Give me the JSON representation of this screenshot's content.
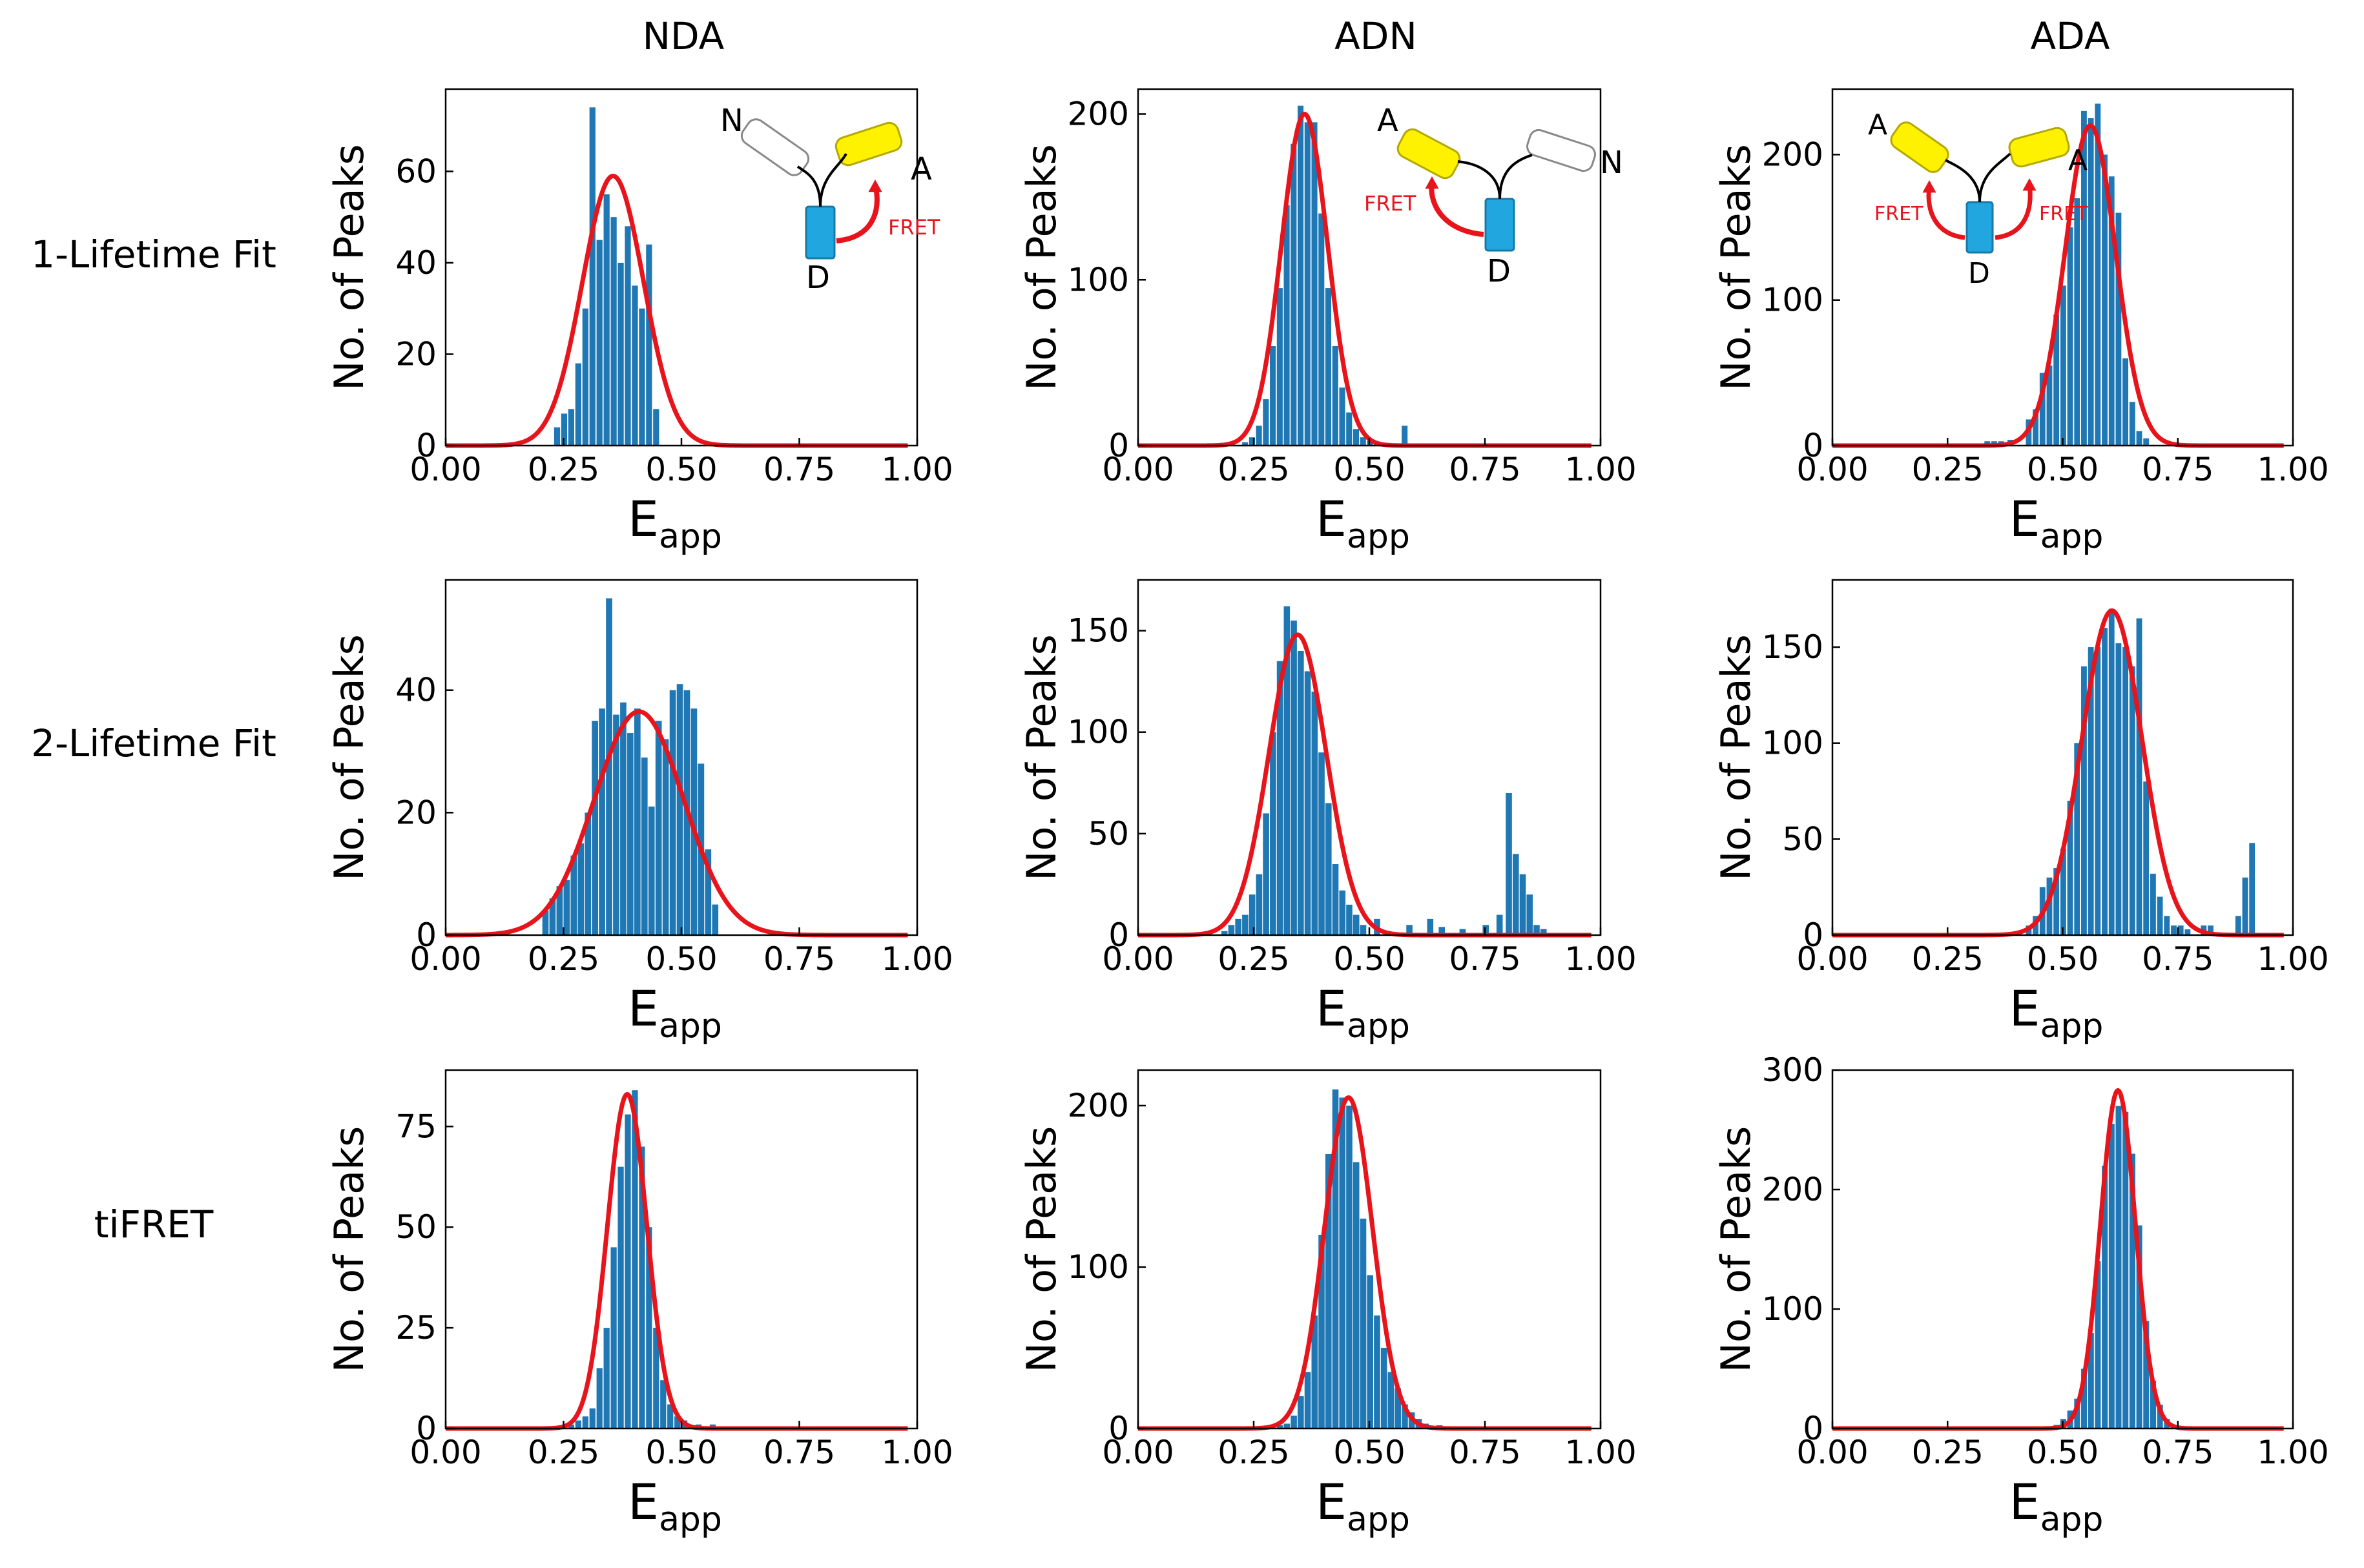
{
  "column_titles": [
    "NDA",
    "ADN",
    "ADA"
  ],
  "row_titles": [
    "1-Lifetime Fit",
    "2-Lifetime Fit",
    "tiFRET"
  ],
  "colors": {
    "bar": "#1f77b4",
    "fit": "#e8141c",
    "donor": "#21a6e0",
    "acceptor": "#fff200",
    "fret_text": "#e8141c",
    "axes": "#000000"
  },
  "chart_data": [
    {
      "id": "r1c1",
      "type": "bar",
      "column": "NDA",
      "row": "1-Lifetime Fit",
      "xlabel": "E",
      "xlabel_sub": "app",
      "ylabel": "No. of Peaks",
      "xlim": [
        0,
        1
      ],
      "ylim": [
        0,
        78
      ],
      "xticks": [
        "0.00",
        "0.25",
        "0.50",
        "0.75",
        "1.00"
      ],
      "xtick_values": [
        0,
        0.25,
        0.5,
        0.75,
        1
      ],
      "yticks": [
        "0",
        "20",
        "40",
        "60"
      ],
      "ytick_values": [
        0,
        20,
        40,
        60
      ],
      "bin_width": 0.0147,
      "bins": [
        [
          0.23,
          4
        ],
        [
          0.245,
          7
        ],
        [
          0.26,
          8
        ],
        [
          0.275,
          18
        ],
        [
          0.29,
          30
        ],
        [
          0.305,
          74
        ],
        [
          0.32,
          45
        ],
        [
          0.335,
          55
        ],
        [
          0.35,
          50
        ],
        [
          0.365,
          40
        ],
        [
          0.38,
          48
        ],
        [
          0.395,
          35
        ],
        [
          0.41,
          30
        ],
        [
          0.425,
          44
        ],
        [
          0.44,
          8
        ]
      ],
      "fit": {
        "amp": 59,
        "mu": 0.355,
        "sigma": 0.065
      },
      "inset": {
        "type": "NDA",
        "labels": {
          "N": "N",
          "D": "D",
          "A": "A",
          "fret": "FRET"
        }
      }
    },
    {
      "id": "r1c2",
      "type": "bar",
      "column": "ADN",
      "row": "1-Lifetime Fit",
      "xlabel": "E",
      "xlabel_sub": "app",
      "ylabel": "No. of Peaks",
      "xlim": [
        0,
        1
      ],
      "ylim": [
        0,
        215
      ],
      "xticks": [
        "0.00",
        "0.25",
        "0.50",
        "0.75",
        "1.00"
      ],
      "xtick_values": [
        0,
        0.25,
        0.5,
        0.75,
        1
      ],
      "yticks": [
        "0",
        "100",
        "200"
      ],
      "ytick_values": [
        0,
        100,
        200
      ],
      "bin_width": 0.0148,
      "bins": [
        [
          0.225,
          2
        ],
        [
          0.24,
          5
        ],
        [
          0.255,
          12
        ],
        [
          0.27,
          28
        ],
        [
          0.285,
          60
        ],
        [
          0.3,
          95
        ],
        [
          0.315,
          145
        ],
        [
          0.33,
          182
        ],
        [
          0.345,
          205
        ],
        [
          0.36,
          195
        ],
        [
          0.375,
          195
        ],
        [
          0.39,
          140
        ],
        [
          0.405,
          95
        ],
        [
          0.42,
          60
        ],
        [
          0.435,
          35
        ],
        [
          0.45,
          20
        ],
        [
          0.465,
          10
        ],
        [
          0.48,
          5
        ],
        [
          0.495,
          3
        ],
        [
          0.51,
          2
        ],
        [
          0.57,
          12
        ]
      ],
      "fit": {
        "amp": 200,
        "mu": 0.36,
        "sigma": 0.05
      },
      "inset": {
        "type": "ADN",
        "labels": {
          "N": "N",
          "D": "D",
          "A": "A",
          "fret": "FRET"
        }
      }
    },
    {
      "id": "r1c3",
      "type": "bar",
      "column": "ADA",
      "row": "1-Lifetime Fit",
      "xlabel": "E",
      "xlabel_sub": "app",
      "ylabel": "No. of Peaks",
      "xlim": [
        0,
        1
      ],
      "ylim": [
        0,
        245
      ],
      "xticks": [
        "0.00",
        "0.25",
        "0.50",
        "0.75",
        "1.00"
      ],
      "xtick_values": [
        0,
        0.25,
        0.5,
        0.75,
        1
      ],
      "yticks": [
        "0",
        "100",
        "200"
      ],
      "ytick_values": [
        0,
        100,
        200
      ],
      "bin_width": 0.0145,
      "bins": [
        [
          0.33,
          3
        ],
        [
          0.345,
          3
        ],
        [
          0.36,
          3
        ],
        [
          0.38,
          4
        ],
        [
          0.42,
          18
        ],
        [
          0.435,
          25
        ],
        [
          0.45,
          50
        ],
        [
          0.465,
          55
        ],
        [
          0.48,
          90
        ],
        [
          0.495,
          110
        ],
        [
          0.51,
          150
        ],
        [
          0.525,
          170
        ],
        [
          0.54,
          230
        ],
        [
          0.555,
          225
        ],
        [
          0.57,
          235
        ],
        [
          0.585,
          200
        ],
        [
          0.6,
          185
        ],
        [
          0.615,
          160
        ],
        [
          0.63,
          60
        ],
        [
          0.645,
          30
        ],
        [
          0.66,
          10
        ],
        [
          0.675,
          5
        ]
      ],
      "fit": {
        "amp": 220,
        "mu": 0.56,
        "sigma": 0.055
      },
      "inset": {
        "type": "ADA",
        "labels": {
          "D": "D",
          "A1": "A",
          "A2": "A",
          "fret1": "FRET",
          "fret2": "FRET"
        }
      }
    },
    {
      "id": "r2c1",
      "type": "bar",
      "column": "NDA",
      "row": "2-Lifetime Fit",
      "xlabel": "E",
      "xlabel_sub": "app",
      "ylabel": "No. of Peaks",
      "xlim": [
        0,
        1
      ],
      "ylim": [
        0,
        58
      ],
      "xticks": [
        "0.00",
        "0.25",
        "0.50",
        "0.75",
        "1.00"
      ],
      "xtick_values": [
        0,
        0.25,
        0.5,
        0.75,
        1
      ],
      "yticks": [
        "0",
        "20",
        "40"
      ],
      "ytick_values": [
        0,
        20,
        40
      ],
      "bin_width": 0.0153,
      "bins": [
        [
          0.205,
          4
        ],
        [
          0.22,
          6
        ],
        [
          0.235,
          8
        ],
        [
          0.25,
          9
        ],
        [
          0.265,
          13
        ],
        [
          0.28,
          15
        ],
        [
          0.295,
          20
        ],
        [
          0.31,
          35
        ],
        [
          0.325,
          37
        ],
        [
          0.34,
          55
        ],
        [
          0.355,
          36
        ],
        [
          0.37,
          38
        ],
        [
          0.385,
          33
        ],
        [
          0.4,
          37
        ],
        [
          0.415,
          29
        ],
        [
          0.43,
          21
        ],
        [
          0.445,
          35
        ],
        [
          0.46,
          32
        ],
        [
          0.475,
          40
        ],
        [
          0.49,
          41
        ],
        [
          0.505,
          40
        ],
        [
          0.52,
          37
        ],
        [
          0.535,
          28
        ],
        [
          0.55,
          14
        ],
        [
          0.565,
          5
        ]
      ],
      "fit": {
        "amp": 36.5,
        "mu": 0.41,
        "sigma": 0.095
      }
    },
    {
      "id": "r2c2",
      "type": "bar",
      "column": "ADN",
      "row": "2-Lifetime Fit",
      "xlabel": "E",
      "xlabel_sub": "app",
      "ylabel": "No. of Peaks",
      "xlim": [
        0,
        1
      ],
      "ylim": [
        0,
        175
      ],
      "xticks": [
        "0.00",
        "0.25",
        "0.50",
        "0.75",
        "1.00"
      ],
      "xtick_values": [
        0,
        0.25,
        0.5,
        0.75,
        1
      ],
      "yticks": [
        "0",
        "50",
        "100",
        "150"
      ],
      "ytick_values": [
        0,
        50,
        100,
        150
      ],
      "bin_width": 0.0155,
      "bins": [
        [
          0.18,
          2
        ],
        [
          0.195,
          5
        ],
        [
          0.21,
          8
        ],
        [
          0.225,
          10
        ],
        [
          0.24,
          20
        ],
        [
          0.255,
          30
        ],
        [
          0.27,
          60
        ],
        [
          0.285,
          100
        ],
        [
          0.3,
          135
        ],
        [
          0.315,
          162
        ],
        [
          0.33,
          155
        ],
        [
          0.345,
          140
        ],
        [
          0.36,
          130
        ],
        [
          0.375,
          120
        ],
        [
          0.39,
          90
        ],
        [
          0.405,
          65
        ],
        [
          0.42,
          35
        ],
        [
          0.435,
          22
        ],
        [
          0.45,
          15
        ],
        [
          0.465,
          10
        ],
        [
          0.48,
          5
        ],
        [
          0.51,
          8
        ],
        [
          0.58,
          5
        ],
        [
          0.625,
          8
        ],
        [
          0.65,
          4
        ],
        [
          0.695,
          3
        ],
        [
          0.745,
          5
        ],
        [
          0.775,
          10
        ],
        [
          0.795,
          70
        ],
        [
          0.81,
          40
        ],
        [
          0.825,
          30
        ],
        [
          0.84,
          20
        ],
        [
          0.855,
          5
        ],
        [
          0.87,
          3
        ]
      ],
      "fit": {
        "amp": 148,
        "mu": 0.345,
        "sigma": 0.062
      }
    },
    {
      "id": "r2c3",
      "type": "bar",
      "column": "ADA",
      "row": "2-Lifetime Fit",
      "xlabel": "E",
      "xlabel_sub": "app",
      "ylabel": "No. of Peaks",
      "xlim": [
        0,
        1
      ],
      "ylim": [
        0,
        185
      ],
      "xticks": [
        "0.00",
        "0.25",
        "0.50",
        "0.75",
        "1.00"
      ],
      "xtick_values": [
        0,
        0.25,
        0.5,
        0.75,
        1
      ],
      "yticks": [
        "0",
        "50",
        "100",
        "150"
      ],
      "ytick_values": [
        0,
        50,
        100,
        150
      ],
      "bin_width": 0.0145,
      "bins": [
        [
          0.42,
          5
        ],
        [
          0.435,
          10
        ],
        [
          0.45,
          25
        ],
        [
          0.465,
          30
        ],
        [
          0.48,
          35
        ],
        [
          0.495,
          45
        ],
        [
          0.51,
          70
        ],
        [
          0.525,
          100
        ],
        [
          0.54,
          140
        ],
        [
          0.555,
          150
        ],
        [
          0.57,
          150
        ],
        [
          0.585,
          160
        ],
        [
          0.6,
          170
        ],
        [
          0.615,
          152
        ],
        [
          0.63,
          150
        ],
        [
          0.645,
          140
        ],
        [
          0.66,
          165
        ],
        [
          0.675,
          80
        ],
        [
          0.69,
          32
        ],
        [
          0.705,
          20
        ],
        [
          0.72,
          10
        ],
        [
          0.735,
          5
        ],
        [
          0.75,
          5
        ],
        [
          0.765,
          3
        ],
        [
          0.8,
          5
        ],
        [
          0.815,
          5
        ],
        [
          0.875,
          10
        ],
        [
          0.89,
          30
        ],
        [
          0.905,
          48
        ]
      ],
      "fit": {
        "amp": 169,
        "mu": 0.607,
        "sigma": 0.065
      }
    },
    {
      "id": "r3c1",
      "type": "bar",
      "column": "NDA",
      "row": "tiFRET",
      "xlabel": "E",
      "xlabel_sub": "app",
      "ylabel": "No. of Peaks",
      "xlim": [
        0,
        1
      ],
      "ylim": [
        0,
        89
      ],
      "xticks": [
        "0.00",
        "0.25",
        "0.50",
        "0.75",
        "1.00"
      ],
      "xtick_values": [
        0,
        0.25,
        0.5,
        0.75,
        1
      ],
      "yticks": [
        "0",
        "25",
        "50",
        "75"
      ],
      "ytick_values": [
        0,
        25,
        50,
        75
      ],
      "bin_width": 0.0147,
      "bins": [
        [
          0.26,
          1
        ],
        [
          0.275,
          2
        ],
        [
          0.29,
          3
        ],
        [
          0.305,
          5
        ],
        [
          0.32,
          15
        ],
        [
          0.335,
          25
        ],
        [
          0.35,
          45
        ],
        [
          0.365,
          65
        ],
        [
          0.38,
          78
        ],
        [
          0.395,
          84
        ],
        [
          0.41,
          70
        ],
        [
          0.425,
          50
        ],
        [
          0.44,
          25
        ],
        [
          0.455,
          12
        ],
        [
          0.47,
          6
        ],
        [
          0.485,
          3
        ],
        [
          0.5,
          2
        ],
        [
          0.53,
          1
        ],
        [
          0.56,
          1
        ]
      ],
      "fit": {
        "amp": 83,
        "mu": 0.385,
        "sigma": 0.042
      }
    },
    {
      "id": "r3c2",
      "type": "bar",
      "column": "ADN",
      "row": "tiFRET",
      "xlabel": "E",
      "xlabel_sub": "app",
      "ylabel": "No. of Peaks",
      "xlim": [
        0,
        1
      ],
      "ylim": [
        0,
        222
      ],
      "xticks": [
        "0.00",
        "0.25",
        "0.50",
        "0.75",
        "1.00"
      ],
      "xtick_values": [
        0,
        0.25,
        0.5,
        0.75,
        1
      ],
      "yticks": [
        "0",
        "100",
        "200"
      ],
      "ytick_values": [
        0,
        100,
        200
      ],
      "bin_width": 0.0155,
      "bins": [
        [
          0.3,
          2
        ],
        [
          0.315,
          3
        ],
        [
          0.33,
          8
        ],
        [
          0.345,
          20
        ],
        [
          0.36,
          35
        ],
        [
          0.375,
          70
        ],
        [
          0.39,
          120
        ],
        [
          0.405,
          170
        ],
        [
          0.42,
          210
        ],
        [
          0.435,
          205
        ],
        [
          0.45,
          200
        ],
        [
          0.465,
          165
        ],
        [
          0.48,
          130
        ],
        [
          0.495,
          95
        ],
        [
          0.51,
          70
        ],
        [
          0.525,
          50
        ],
        [
          0.54,
          35
        ],
        [
          0.555,
          25
        ],
        [
          0.57,
          15
        ],
        [
          0.585,
          10
        ],
        [
          0.6,
          6
        ],
        [
          0.615,
          3
        ],
        [
          0.645,
          2
        ],
        [
          0.685,
          1
        ]
      ],
      "fit": {
        "amp": 205,
        "mu": 0.455,
        "sigma": 0.052
      }
    },
    {
      "id": "r3c3",
      "type": "bar",
      "column": "ADA",
      "row": "tiFRET",
      "xlabel": "E",
      "xlabel_sub": "app",
      "ylabel": "No. of Peaks",
      "xlim": [
        0,
        1
      ],
      "ylim": [
        0,
        300
      ],
      "xticks": [
        "0.00",
        "0.25",
        "0.50",
        "0.75",
        "1.00"
      ],
      "xtick_values": [
        0,
        0.25,
        0.5,
        0.75,
        1
      ],
      "yticks": [
        "0",
        "100",
        "200",
        "300"
      ],
      "ytick_values": [
        0,
        100,
        200,
        300
      ],
      "bin_width": 0.0148,
      "bins": [
        [
          0.48,
          3
        ],
        [
          0.495,
          8
        ],
        [
          0.51,
          15
        ],
        [
          0.525,
          25
        ],
        [
          0.54,
          50
        ],
        [
          0.555,
          80
        ],
        [
          0.57,
          140
        ],
        [
          0.585,
          220
        ],
        [
          0.6,
          255
        ],
        [
          0.615,
          270
        ],
        [
          0.63,
          265
        ],
        [
          0.645,
          230
        ],
        [
          0.66,
          170
        ],
        [
          0.675,
          90
        ],
        [
          0.69,
          40
        ],
        [
          0.705,
          20
        ],
        [
          0.72,
          8
        ],
        [
          0.735,
          3
        ]
      ],
      "fit": {
        "amp": 283,
        "mu": 0.62,
        "sigma": 0.038
      }
    }
  ]
}
